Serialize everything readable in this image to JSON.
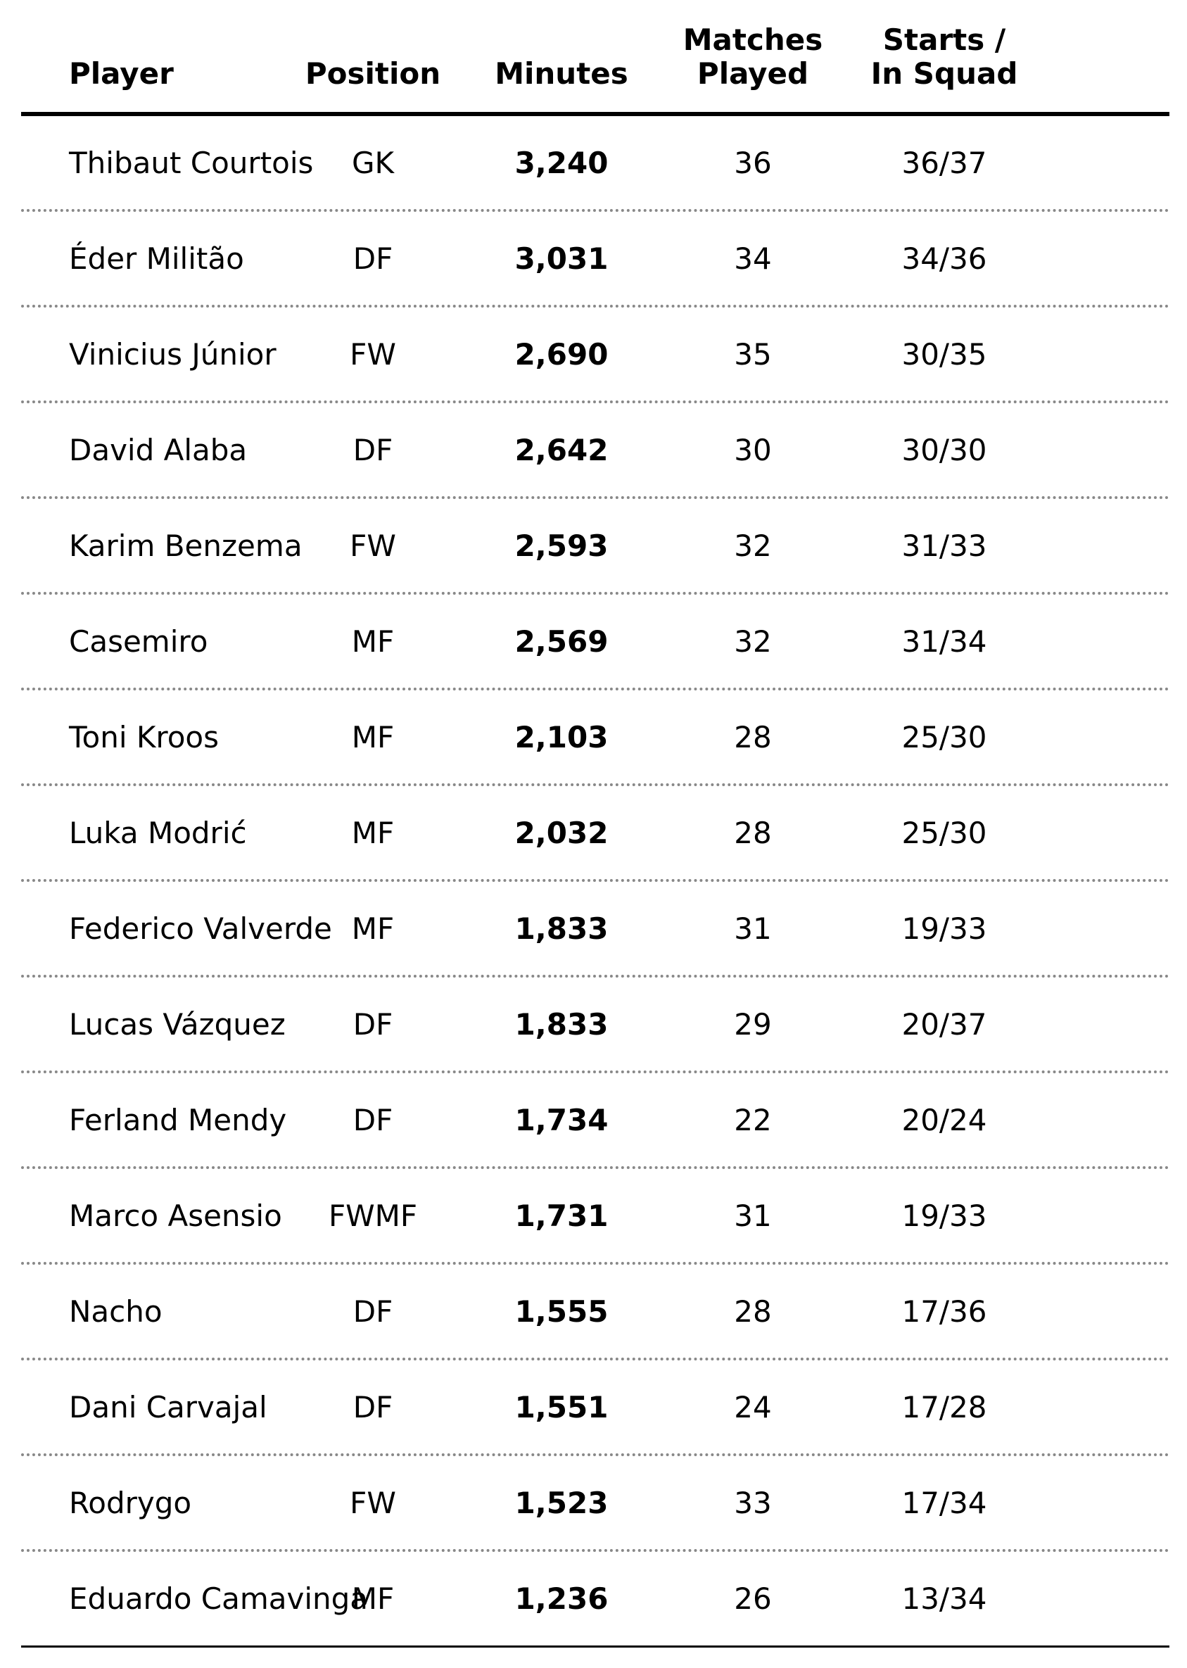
{
  "chart_data": {
    "type": "table",
    "columns": [
      [
        "Player"
      ],
      [
        "Position"
      ],
      [
        "Minutes"
      ],
      [
        "Matches",
        "Played"
      ],
      [
        "Starts /",
        "In Squad"
      ]
    ],
    "rows": [
      {
        "player": "Thibaut Courtois",
        "position": "GK",
        "minutes": "3,240",
        "matches": "36",
        "starts": "36/37"
      },
      {
        "player": "Éder Militão",
        "position": "DF",
        "minutes": "3,031",
        "matches": "34",
        "starts": "34/36"
      },
      {
        "player": "Vinicius Júnior",
        "position": "FW",
        "minutes": "2,690",
        "matches": "35",
        "starts": "30/35"
      },
      {
        "player": "David Alaba",
        "position": "DF",
        "minutes": "2,642",
        "matches": "30",
        "starts": "30/30"
      },
      {
        "player": "Karim Benzema",
        "position": "FW",
        "minutes": "2,593",
        "matches": "32",
        "starts": "31/33"
      },
      {
        "player": "Casemiro",
        "position": "MF",
        "minutes": "2,569",
        "matches": "32",
        "starts": "31/34"
      },
      {
        "player": "Toni Kroos",
        "position": "MF",
        "minutes": "2,103",
        "matches": "28",
        "starts": "25/30"
      },
      {
        "player": "Luka Modrić",
        "position": "MF",
        "minutes": "2,032",
        "matches": "28",
        "starts": "25/30"
      },
      {
        "player": "Federico Valverde",
        "position": "MF",
        "minutes": "1,833",
        "matches": "31",
        "starts": "19/33"
      },
      {
        "player": "Lucas Vázquez",
        "position": "DF",
        "minutes": "1,833",
        "matches": "29",
        "starts": "20/37"
      },
      {
        "player": "Ferland Mendy",
        "position": "DF",
        "minutes": "1,734",
        "matches": "22",
        "starts": "20/24"
      },
      {
        "player": "Marco Asensio",
        "position": "FWMF",
        "minutes": "1,731",
        "matches": "31",
        "starts": "19/33"
      },
      {
        "player": "Nacho",
        "position": "DF",
        "minutes": "1,555",
        "matches": "28",
        "starts": "17/36"
      },
      {
        "player": "Dani Carvajal",
        "position": "DF",
        "minutes": "1,551",
        "matches": "24",
        "starts": "17/28"
      },
      {
        "player": "Rodrygo",
        "position": "FW",
        "minutes": "1,523",
        "matches": "33",
        "starts": "17/34"
      },
      {
        "player": "Eduardo Camavinga",
        "position": "MF",
        "minutes": "1,236",
        "matches": "26",
        "starts": "13/34"
      }
    ]
  }
}
